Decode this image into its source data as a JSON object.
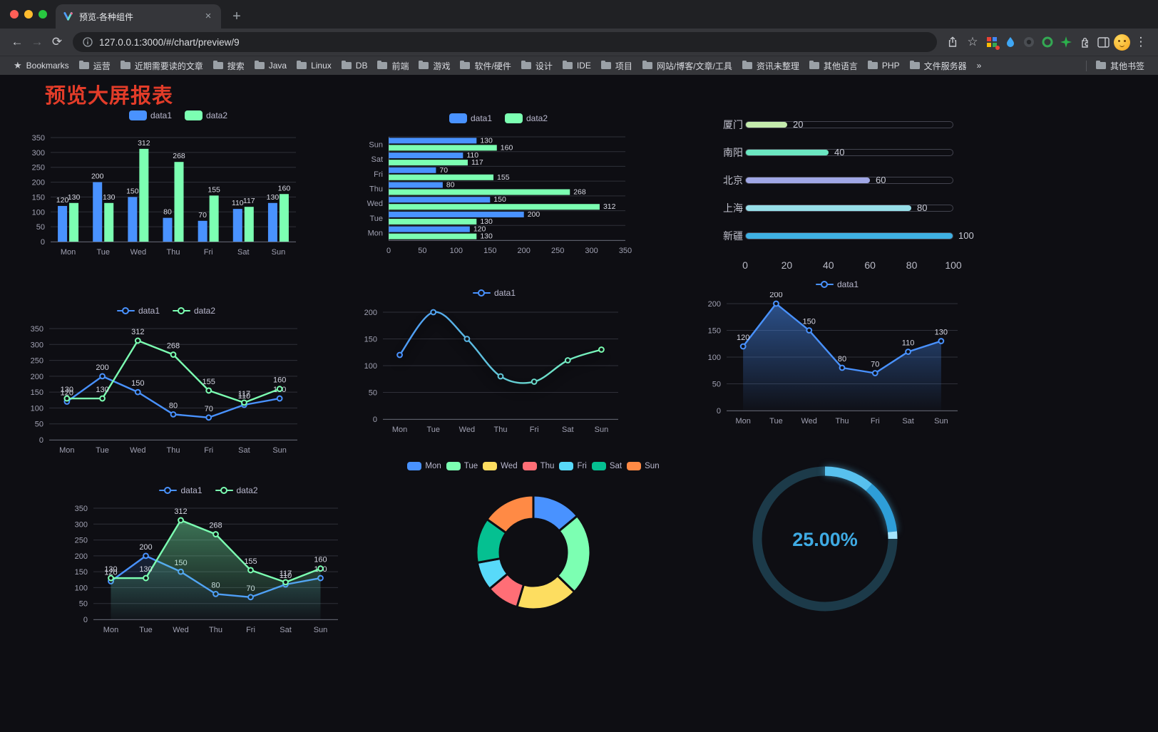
{
  "browser": {
    "tab_title": "预览-各种组件",
    "url": "127.0.0.1:3000/#/chart/preview/9",
    "bookmarks_label": "Bookmarks",
    "bookmarks": [
      "运营",
      "近期需要读的文章",
      "搜索",
      "Java",
      "Linux",
      "DB",
      "前端",
      "游戏",
      "软件/硬件",
      "设计",
      "IDE",
      "项目",
      "网站/博客/文章/工具",
      "资讯未整理",
      "其他语言",
      "PHP",
      "文件服务器"
    ],
    "overflow_chevron": "»",
    "other_bookmarks": "其他书签",
    "icons": {
      "back": "←",
      "forward": "→",
      "reload": "⟳",
      "new_tab": "+",
      "tab_close": "×",
      "menu": "⋮",
      "bookmark_star": "☆",
      "bookmarks_bar_star": "★"
    }
  },
  "page": {
    "title": "预览大屏报表",
    "title_color": "#e23c29",
    "background": "#0e0e13"
  },
  "chart_data": [
    {
      "id": "bar-grouped",
      "type": "bar",
      "categories": [
        "Mon",
        "Tue",
        "Wed",
        "Thu",
        "Fri",
        "Sat",
        "Sun"
      ],
      "series": [
        {
          "name": "data1",
          "color": "#4992ff",
          "values": [
            120,
            200,
            150,
            80,
            70,
            110,
            130
          ]
        },
        {
          "name": "data2",
          "color": "#7cffb2",
          "values": [
            130,
            130,
            312,
            268,
            155,
            117,
            160
          ]
        }
      ],
      "ylim": [
        0,
        350
      ],
      "yticks": [
        0,
        50,
        100,
        150,
        200,
        250,
        300,
        350
      ],
      "legend_position": "top"
    },
    {
      "id": "bar-horizontal",
      "type": "hbar",
      "categories": [
        "Mon",
        "Tue",
        "Wed",
        "Thu",
        "Fri",
        "Sat",
        "Sun"
      ],
      "series": [
        {
          "name": "data1",
          "color": "#4992ff",
          "values": [
            120,
            200,
            150,
            80,
            70,
            110,
            130
          ]
        },
        {
          "name": "data2",
          "color": "#7cffb2",
          "values": [
            130,
            130,
            312,
            268,
            155,
            117,
            160
          ]
        }
      ],
      "xlim": [
        0,
        350
      ],
      "xticks": [
        0,
        50,
        100,
        150,
        200,
        250,
        300,
        350
      ],
      "legend_position": "top"
    },
    {
      "id": "progress-bars",
      "type": "progress",
      "max": 100,
      "xticks": [
        0,
        20,
        40,
        60,
        80,
        100
      ],
      "items": [
        {
          "label": "厦门",
          "value": 20,
          "color": "#c4ebad"
        },
        {
          "label": "南阳",
          "value": 40,
          "color": "#6be6c1"
        },
        {
          "label": "北京",
          "value": 60,
          "color": "#a0a7e6"
        },
        {
          "label": "上海",
          "value": 80,
          "color": "#96dee8"
        },
        {
          "label": "新疆",
          "value": 100,
          "color": "#3fb1e3"
        }
      ]
    },
    {
      "id": "line-basic",
      "type": "line",
      "categories": [
        "Mon",
        "Tue",
        "Wed",
        "Thu",
        "Fri",
        "Sat",
        "Sun"
      ],
      "series": [
        {
          "name": "data1",
          "color": "#4992ff",
          "values": [
            120,
            200,
            150,
            80,
            70,
            110,
            130
          ],
          "labels": true
        },
        {
          "name": "data2",
          "color": "#7cffb2",
          "values": [
            130,
            130,
            312,
            268,
            155,
            117,
            160
          ],
          "labels": true
        }
      ],
      "ylim": [
        0,
        350
      ],
      "yticks": [
        0,
        50,
        100,
        150,
        200,
        250,
        300,
        350
      ],
      "legend_position": "top"
    },
    {
      "id": "line-gradient",
      "type": "line",
      "categories": [
        "Mon",
        "Tue",
        "Wed",
        "Thu",
        "Fri",
        "Sat",
        "Sun"
      ],
      "series": [
        {
          "name": "data1",
          "colorStops": [
            "#4992ff",
            "#7cffb2"
          ],
          "values": [
            120,
            200,
            150,
            80,
            70,
            110,
            130
          ],
          "smooth": true,
          "shadow": true
        }
      ],
      "ylim": [
        0,
        200
      ],
      "yticks": [
        0,
        50,
        100,
        150,
        200
      ],
      "legend_position": "top"
    },
    {
      "id": "line-area",
      "type": "line",
      "categories": [
        "Mon",
        "Tue",
        "Wed",
        "Thu",
        "Fri",
        "Sat",
        "Sun"
      ],
      "series": [
        {
          "name": "data1",
          "color": "#4992ff",
          "values": [
            120,
            200,
            150,
            80,
            70,
            110,
            130
          ],
          "labels": true,
          "area": 0.5
        }
      ],
      "ylim": [
        0,
        200
      ],
      "yticks": [
        0,
        50,
        100,
        150,
        200
      ],
      "legend_position": "top"
    },
    {
      "id": "line-area-two",
      "type": "line",
      "categories": [
        "Mon",
        "Tue",
        "Wed",
        "Thu",
        "Fri",
        "Sat",
        "Sun"
      ],
      "series": [
        {
          "name": "data1",
          "color": "#4992ff",
          "values": [
            120,
            200,
            150,
            80,
            70,
            110,
            130
          ],
          "labels": true,
          "area": 0.15
        },
        {
          "name": "data2",
          "color": "#7cffb2",
          "values": [
            130,
            130,
            312,
            268,
            155,
            117,
            160
          ],
          "labels": true,
          "area": 0.42
        }
      ],
      "ylim": [
        0,
        350
      ],
      "yticks": [
        0,
        50,
        100,
        150,
        200,
        250,
        300,
        350
      ],
      "legend_position": "top"
    },
    {
      "id": "donut",
      "type": "donut",
      "legend_position": "top",
      "items": [
        {
          "label": "Mon",
          "value": 120,
          "color": "#4992ff"
        },
        {
          "label": "Tue",
          "value": 200,
          "color": "#7cffb2"
        },
        {
          "label": "Wed",
          "value": 150,
          "color": "#fddd60"
        },
        {
          "label": "Thu",
          "value": 80,
          "color": "#ff6e76"
        },
        {
          "label": "Fri",
          "value": 70,
          "color": "#58d9f9"
        },
        {
          "label": "Sat",
          "value": 110,
          "color": "#05c091"
        },
        {
          "label": "Sun",
          "value": 130,
          "color": "#ff8a45"
        }
      ]
    },
    {
      "id": "gauge",
      "type": "gauge",
      "percent": 25,
      "label": "25.00%",
      "color": "#2e9ed8",
      "color_start": "#58c1ee",
      "color_cap": "#a5e4fb",
      "track": "#1c3a49",
      "text_color": "#3fabe4"
    }
  ]
}
